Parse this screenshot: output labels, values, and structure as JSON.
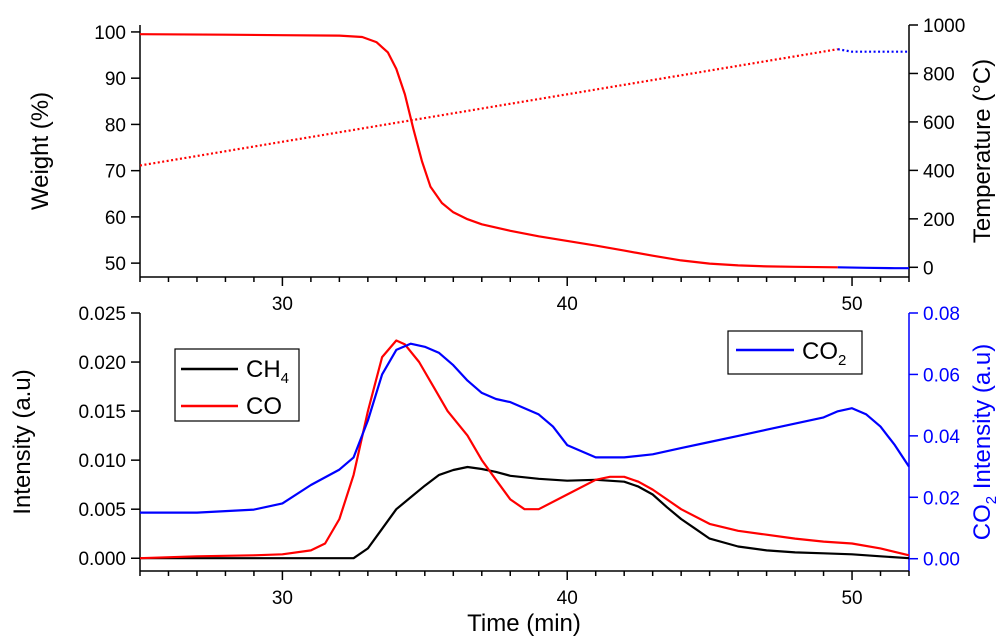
{
  "chart_data": [
    {
      "type": "line",
      "panel": "top",
      "xlim": [
        25,
        52
      ],
      "x_ticks": [
        30,
        40,
        50
      ],
      "x_tick_labels": [
        "30",
        "40",
        "50"
      ],
      "ylabel": "Weight (%)",
      "ylim": [
        47,
        101.5
      ],
      "y_ticks": [
        50,
        60,
        70,
        80,
        90,
        100
      ],
      "y_tick_labels": [
        "50",
        "60",
        "70",
        "80",
        "90",
        "100"
      ],
      "y2label": "Temperature (°C)",
      "y2lim": [
        -40,
        1000
      ],
      "y2_ticks": [
        0,
        200,
        400,
        600,
        800,
        1000
      ],
      "y2_tick_labels": [
        "0",
        "200",
        "400",
        "600",
        "800",
        "1000"
      ],
      "colors": {
        "red": "#ff0000",
        "blue": "#0000ff"
      },
      "series": [
        {
          "axis": "left",
          "style": "solid",
          "color": "#ff0000",
          "x": [
            25,
            28,
            30,
            32,
            32.8,
            33.3,
            33.7,
            34.0,
            34.3,
            34.6,
            34.9,
            35.2,
            35.6,
            36.0,
            36.5,
            37.0,
            38.0,
            39.0,
            40.0,
            41.0,
            42.0,
            43.0,
            44.0,
            45.0,
            46.0,
            47.0,
            48.0,
            49.5
          ],
          "y": [
            99.5,
            99.4,
            99.3,
            99.2,
            98.9,
            97.8,
            95.6,
            92.0,
            86.5,
            79.0,
            72.0,
            66.5,
            63.0,
            61.0,
            59.5,
            58.4,
            57.0,
            55.8,
            54.8,
            53.8,
            52.7,
            51.6,
            50.6,
            49.9,
            49.5,
            49.3,
            49.2,
            49.1
          ]
        },
        {
          "axis": "left",
          "style": "solid",
          "color": "#0000ff",
          "x": [
            49.5,
            50.5,
            51.5,
            52
          ],
          "y": [
            49.1,
            49.0,
            48.9,
            48.9
          ]
        },
        {
          "axis": "right",
          "style": "dotted",
          "color": "#ff0000",
          "x": [
            25,
            49.5
          ],
          "y": [
            420,
            900
          ]
        },
        {
          "axis": "right",
          "style": "dotted",
          "color": "#0000ff",
          "x": [
            49.5,
            50.0,
            52
          ],
          "y": [
            900,
            890,
            890
          ]
        }
      ]
    },
    {
      "type": "line",
      "panel": "bottom",
      "xlim": [
        25,
        52
      ],
      "x_ticks": [
        30,
        40,
        50
      ],
      "x_tick_labels": [
        "30",
        "40",
        "50"
      ],
      "xlabel": "Time (min)",
      "ylabel": "Intensity (a.u)",
      "ylim": [
        -0.0013,
        0.025
      ],
      "y_ticks": [
        0,
        0.005,
        0.01,
        0.015,
        0.02,
        0.025
      ],
      "y_tick_labels": [
        "0.000",
        "0.005",
        "0.010",
        "0.015",
        "0.020",
        "0.025"
      ],
      "y2label": "CO",
      "y2label_sub": "2",
      "y2label_rest": " Intensity (a.u)",
      "y2lim": [
        -0.004,
        0.08
      ],
      "y2_ticks": [
        0,
        0.02,
        0.04,
        0.06,
        0.08
      ],
      "y2_tick_labels": [
        "0.00",
        "0.02",
        "0.04",
        "0.06",
        "0.08"
      ],
      "legend_left": [
        {
          "label": "CH",
          "sub": "4",
          "color": "#000000"
        },
        {
          "label": "CO",
          "sub": "",
          "color": "#ff0000"
        }
      ],
      "legend_right": [
        {
          "label": "CO",
          "sub": "2",
          "color": "#0000ff"
        }
      ],
      "series": [
        {
          "label": "CH4",
          "axis": "left",
          "color": "#000000",
          "x": [
            25,
            27,
            29,
            31,
            32.5,
            33.0,
            33.5,
            34.0,
            34.5,
            35.0,
            35.5,
            36.0,
            36.5,
            37.0,
            37.5,
            38.0,
            39.0,
            40.0,
            41.0,
            42.0,
            42.5,
            43.0,
            43.5,
            44.0,
            44.5,
            45.0,
            46.0,
            47.0,
            48.0,
            49.0,
            50.0,
            51.0,
            52.0
          ],
          "y": [
            0.0,
            0.0,
            0.0,
            0.0,
            0.0,
            0.001,
            0.003,
            0.005,
            0.0062,
            0.0074,
            0.0085,
            0.009,
            0.0093,
            0.0091,
            0.0088,
            0.0084,
            0.0081,
            0.0079,
            0.008,
            0.0078,
            0.0073,
            0.0065,
            0.0052,
            0.004,
            0.003,
            0.002,
            0.0012,
            0.0008,
            0.0006,
            0.0005,
            0.0004,
            0.0002,
            0.0
          ]
        },
        {
          "label": "CO",
          "axis": "left",
          "color": "#ff0000",
          "x": [
            25,
            27,
            29,
            30,
            31,
            31.5,
            32.0,
            32.5,
            33.0,
            33.5,
            34.0,
            34.3,
            34.8,
            35.3,
            35.8,
            36.5,
            37.0,
            37.5,
            38.0,
            38.5,
            39.0,
            40.0,
            41.0,
            41.5,
            42.0,
            42.5,
            43.0,
            43.5,
            44.0,
            45.0,
            46.0,
            47.0,
            48.0,
            49.0,
            50.0,
            51.0,
            52.0
          ],
          "y": [
            0.0,
            0.0002,
            0.0003,
            0.0004,
            0.0008,
            0.0015,
            0.004,
            0.0085,
            0.015,
            0.0205,
            0.0222,
            0.0218,
            0.02,
            0.0175,
            0.015,
            0.0125,
            0.01,
            0.008,
            0.006,
            0.005,
            0.005,
            0.0065,
            0.008,
            0.0083,
            0.0083,
            0.0078,
            0.007,
            0.006,
            0.005,
            0.0035,
            0.0028,
            0.0024,
            0.002,
            0.0017,
            0.0015,
            0.001,
            0.0003
          ]
        },
        {
          "label": "CO2",
          "axis": "right",
          "color": "#0000ff",
          "x": [
            25,
            27,
            29,
            30,
            31,
            32,
            32.5,
            33.0,
            33.5,
            34.0,
            34.5,
            35.0,
            35.5,
            36.0,
            36.5,
            37.0,
            37.5,
            38.0,
            38.5,
            39.0,
            39.5,
            40.0,
            41.0,
            42.0,
            43.0,
            44.0,
            45.0,
            46.0,
            47.0,
            48.0,
            49.0,
            49.5,
            50.0,
            50.5,
            51.0,
            51.5,
            52.0
          ],
          "y": [
            0.015,
            0.015,
            0.016,
            0.018,
            0.024,
            0.029,
            0.033,
            0.045,
            0.06,
            0.068,
            0.07,
            0.069,
            0.067,
            0.063,
            0.058,
            0.054,
            0.052,
            0.051,
            0.049,
            0.047,
            0.043,
            0.037,
            0.033,
            0.033,
            0.034,
            0.036,
            0.038,
            0.04,
            0.042,
            0.044,
            0.046,
            0.048,
            0.049,
            0.047,
            0.043,
            0.037,
            0.03
          ]
        }
      ]
    }
  ]
}
